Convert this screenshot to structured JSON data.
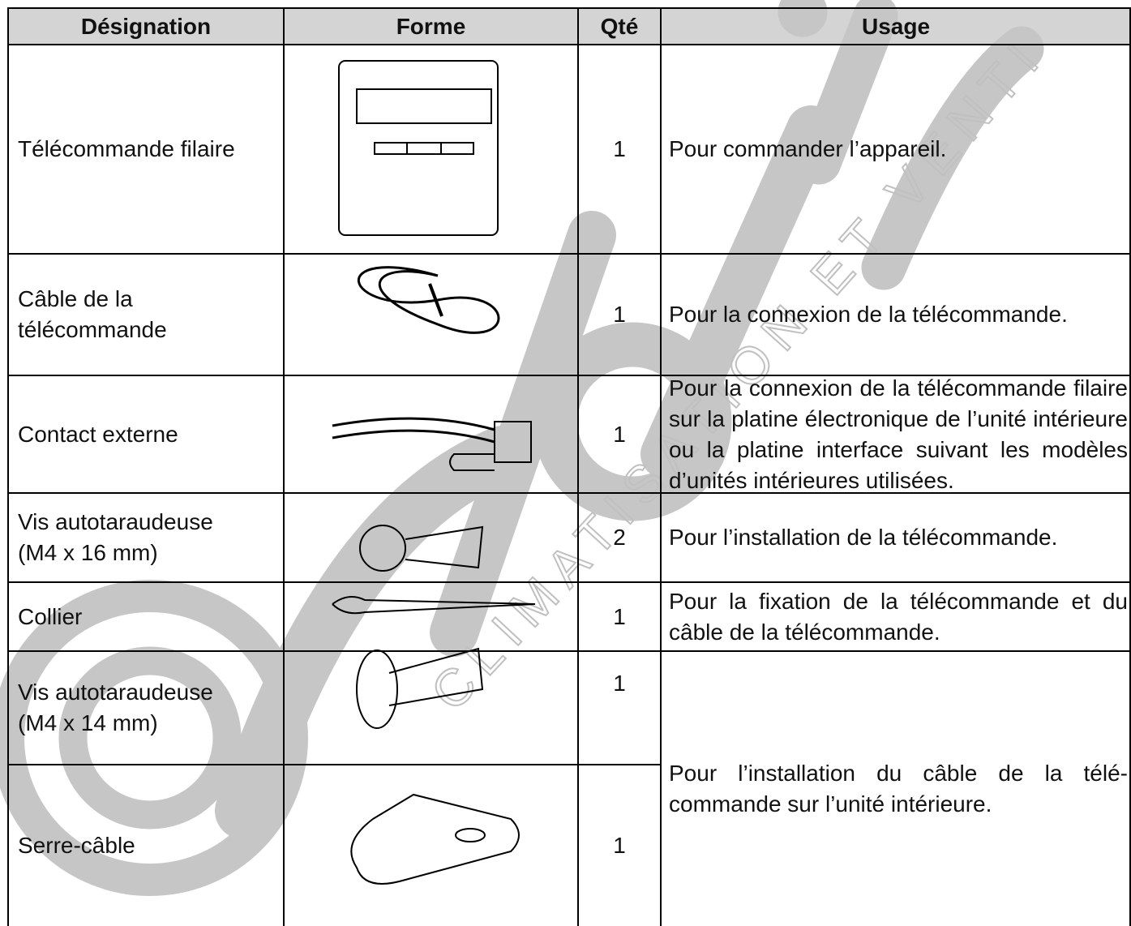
{
  "watermark": "CLIMATISATION ET VENTILATION",
  "table": {
    "headers": [
      "Désignation",
      "Forme",
      "Qté",
      "Usage"
    ],
    "rows": [
      [
        "Télécommande filaire",
        1,
        "Pour commander l’appareil."
      ],
      [
        "Câble de la\ntélécommande",
        1,
        "Pour la connexion de la télécommande."
      ],
      [
        "Contact externe",
        1,
        "Pour la connexion de la télécommande filaire sur la platine électronique de l’unité intérieure ou la platine interface suivant les modèles d’unités intérieures utilisées."
      ],
      [
        "Vis autotaraudeuse\n(M4 x 16 mm)",
        2,
        "Pour l’installation de la télécommande."
      ],
      [
        "Collier",
        1,
        "Pour la fixation de la télécommande et du câble de la télécommande."
      ],
      [
        "Vis autotaraudeuse\n(M4 x 14 mm)",
        1,
        "Pour l’installation du câble de la télé-commande sur l’unité intérieure."
      ],
      [
        " Serre-câble",
        1
      ]
    ]
  }
}
